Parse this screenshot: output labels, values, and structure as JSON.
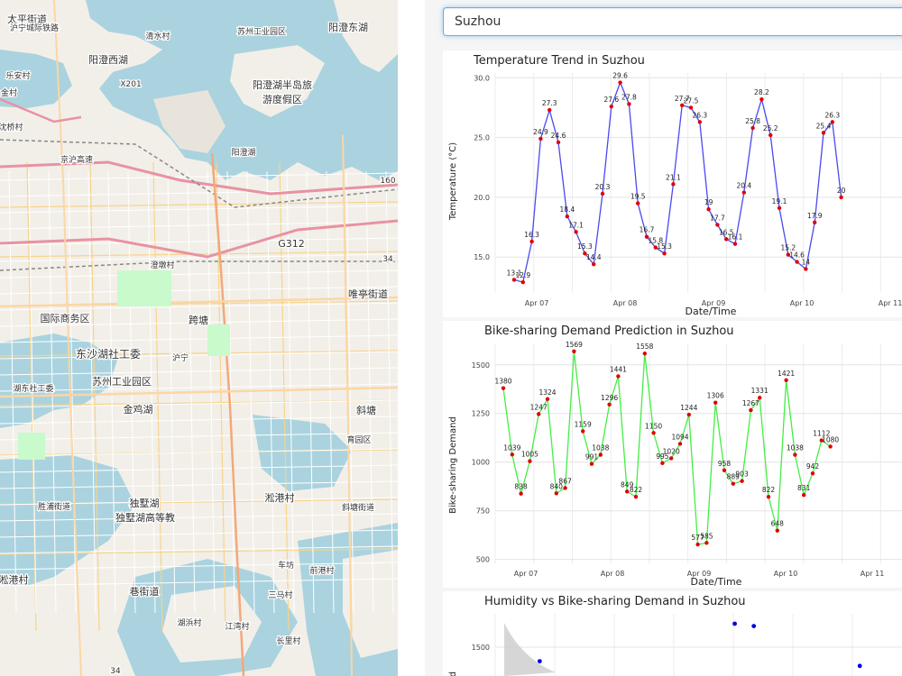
{
  "search": {
    "value": "Suzhou"
  },
  "map": {
    "labels": [
      "太平街道",
      "清水村",
      "阳澄东湖",
      "苏州工业园区",
      "乐安村",
      "阳澄西湖",
      "X201",
      "阳澄湖半岛旅",
      "游度假区",
      "金村",
      "沈桥村",
      "阳澄湖",
      "京沪高速",
      "G312",
      "唯亭街道",
      "国际商务区",
      "跨塘",
      "东沙湖社工委",
      "苏州工业园区",
      "湖东社工委",
      "金鸡湖",
      "斜塘",
      "胜浦街道",
      "独墅湖",
      "独墅湖高等教",
      "育园区",
      "淞港村",
      "斜塘街道",
      "淞港村",
      "巷街道",
      "车坊",
      "前港村",
      "三马村",
      "湖浜村",
      "江湾村",
      "长里村",
      "澄墩村",
      "沪宁城际铁路",
      "34",
      "34",
      "160",
      "沪宁"
    ],
    "water_color": "#aad3df",
    "land_color": "#f2efe9"
  },
  "charts": {
    "temperature": {
      "title": "Temperature Trend in Suzhou",
      "xlabel": "Date/Time",
      "ylabel": "Temperature (°C)"
    },
    "demand": {
      "title": "Bike-sharing Demand Prediction in Suzhou",
      "xlabel": "Date/Time",
      "ylabel": "Bike-sharing Demand"
    },
    "humidity": {
      "title": "Humidity vs Bike-sharing Demand in Suzhou",
      "ylabel": "d"
    }
  },
  "chart_data": [
    {
      "type": "line",
      "title": "Temperature Trend in Suzhou",
      "xlabel": "Date/Time",
      "ylabel": "Temperature (°C)",
      "ylim": [
        12,
        30.4
      ],
      "yticks": [
        15,
        20,
        25,
        30
      ],
      "xticks": [
        "Apr 07",
        "Apr 08",
        "Apr 09",
        "Apr 10",
        "Apr 11"
      ],
      "color": "#4a4af0",
      "point_color": "#e00000",
      "grid": true,
      "x_start_index": 0,
      "values": [
        13.1,
        12.9,
        16.3,
        24.9,
        27.3,
        24.6,
        18.4,
        17.1,
        15.3,
        14.4,
        20.3,
        27.6,
        29.6,
        27.8,
        19.5,
        16.7,
        15.8,
        15.3,
        21.1,
        27.7,
        27.5,
        26.3,
        19,
        17.7,
        16.5,
        16.1,
        20.4,
        25.8,
        28.2,
        25.2,
        19.1,
        15.2,
        14.6,
        14,
        17.9,
        25.4,
        26.3,
        20
      ]
    },
    {
      "type": "line",
      "title": "Bike-sharing Demand Prediction in Suzhou",
      "xlabel": "Date/Time",
      "ylabel": "Bike-sharing Demand",
      "ylim": [
        480,
        1610
      ],
      "yticks": [
        500,
        750,
        1000,
        1250,
        1500
      ],
      "xticks": [
        "Apr 07",
        "Apr 08",
        "Apr 09",
        "Apr 10",
        "Apr 11"
      ],
      "color": "#44ee44",
      "point_color": "#e00000",
      "grid": true,
      "values": [
        1380,
        1039,
        838,
        1005,
        1247,
        1324,
        840,
        867,
        1569,
        1159,
        991,
        1038,
        1296,
        1441,
        849,
        822,
        1558,
        1150,
        995,
        1020,
        1094,
        1244,
        577,
        585,
        1306,
        958,
        889,
        903,
        1267,
        1331,
        822,
        648,
        1421,
        1038,
        831,
        942,
        1112,
        1080
      ]
    },
    {
      "type": "scatter",
      "title": "Humidity vs Bike-sharing Demand in Suzhou",
      "ylabel": "d",
      "yticks": [
        1500
      ],
      "color": "#0000dd",
      "points": [
        [
          0.105,
          1440
        ],
        [
          0.565,
          1600
        ],
        [
          0.61,
          1590
        ],
        [
          0.86,
          1420
        ],
        [
          0.88,
          1360
        ],
        [
          0.3,
          1300
        ]
      ]
    }
  ]
}
